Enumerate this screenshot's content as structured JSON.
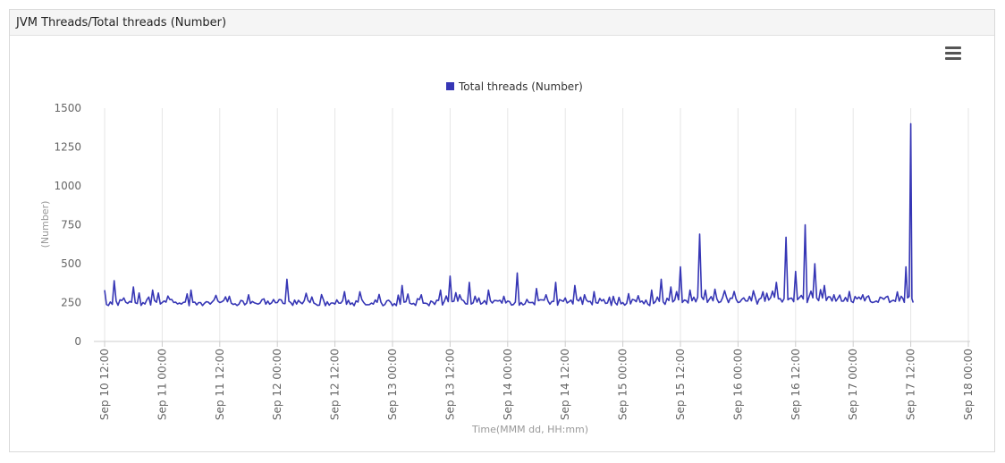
{
  "panel": {
    "title": "JVM Threads/Total threads (Number)"
  },
  "menu": {
    "icon": "hamburger-menu-icon"
  },
  "chart_data": {
    "type": "line",
    "title": "",
    "xlabel": "Time(MMM dd, HH:mm)",
    "ylabel": "(Number)",
    "ylim": [
      0,
      1500
    ],
    "yticks": [
      0,
      250,
      500,
      750,
      1000,
      1250,
      1500
    ],
    "xticks": [
      "Sep 10 12:00",
      "Sep 11 00:00",
      "Sep 11 12:00",
      "Sep 12 00:00",
      "Sep 12 12:00",
      "Sep 13 00:00",
      "Sep 13 12:00",
      "Sep 14 00:00",
      "Sep 14 12:00",
      "Sep 15 00:00",
      "Sep 15 12:00",
      "Sep 16 00:00",
      "Sep 16 12:00",
      "Sep 17 00:00",
      "Sep 17 12:00",
      "Sep 18 00:00"
    ],
    "grid": true,
    "legend_position": "top-center",
    "colors": {
      "series": "#3636b5",
      "grid": "#e6e6e6",
      "axis": "#cccccc"
    },
    "series": [
      {
        "name": "Total threads (Number)",
        "x": [
          "Sep 10 12:00",
          "Sep 10 14:00",
          "Sep 10 16:00",
          "Sep 10 18:00",
          "Sep 10 20:00",
          "Sep 10 22:00",
          "Sep 11 00:00",
          "Sep 11 02:00",
          "Sep 11 04:00",
          "Sep 11 06:00",
          "Sep 11 08:00",
          "Sep 11 10:00",
          "Sep 11 12:00",
          "Sep 11 14:00",
          "Sep 11 16:00",
          "Sep 11 18:00",
          "Sep 11 20:00",
          "Sep 11 22:00",
          "Sep 12 00:00",
          "Sep 12 02:00",
          "Sep 12 04:00",
          "Sep 12 06:00",
          "Sep 12 08:00",
          "Sep 12 10:00",
          "Sep 12 12:00",
          "Sep 12 14:00",
          "Sep 12 16:00",
          "Sep 12 18:00",
          "Sep 12 20:00",
          "Sep 12 22:00",
          "Sep 13 00:00",
          "Sep 13 02:00",
          "Sep 13 04:00",
          "Sep 13 06:00",
          "Sep 13 08:00",
          "Sep 13 10:00",
          "Sep 13 12:00",
          "Sep 13 14:00",
          "Sep 13 16:00",
          "Sep 13 18:00",
          "Sep 13 20:00",
          "Sep 13 22:00",
          "Sep 14 00:00",
          "Sep 14 02:00",
          "Sep 14 04:00",
          "Sep 14 06:00",
          "Sep 14 08:00",
          "Sep 14 10:00",
          "Sep 14 12:00",
          "Sep 14 14:00",
          "Sep 14 16:00",
          "Sep 14 18:00",
          "Sep 14 20:00",
          "Sep 14 22:00",
          "Sep 15 00:00",
          "Sep 15 02:00",
          "Sep 15 04:00",
          "Sep 15 06:00",
          "Sep 15 08:00",
          "Sep 15 10:00",
          "Sep 15 12:00",
          "Sep 15 14:00",
          "Sep 15 16:00",
          "Sep 15 18:00",
          "Sep 15 20:00",
          "Sep 15 22:00",
          "Sep 16 00:00",
          "Sep 16 02:00",
          "Sep 16 04:00",
          "Sep 16 06:00",
          "Sep 16 08:00",
          "Sep 16 10:00",
          "Sep 16 12:00",
          "Sep 16 14:00",
          "Sep 16 16:00",
          "Sep 16 18:00",
          "Sep 16 20:00",
          "Sep 16 22:00",
          "Sep 17 00:00",
          "Sep 17 02:00",
          "Sep 17 04:00",
          "Sep 17 06:00",
          "Sep 17 08:00",
          "Sep 17 10:00",
          "Sep 17 11:00",
          "Sep 17 12:00",
          "Sep 17 12:30"
        ],
        "values": [
          330,
          390,
          280,
          350,
          250,
          330,
          250,
          270,
          240,
          330,
          250,
          240,
          250,
          290,
          240,
          300,
          240,
          260,
          250,
          400,
          240,
          310,
          240,
          230,
          240,
          320,
          230,
          250,
          240,
          230,
          230,
          360,
          240,
          300,
          260,
          330,
          420,
          300,
          380,
          280,
          330,
          260,
          260,
          440,
          270,
          340,
          300,
          380,
          280,
          360,
          300,
          320,
          270,
          290,
          250,
          270,
          260,
          330,
          400,
          350,
          480,
          330,
          690,
          270,
          250,
          250,
          250,
          260,
          240,
          310,
          380,
          670,
          450,
          750,
          500,
          360,
          300,
          260,
          250,
          300,
          250,
          280,
          260,
          290,
          480,
          1400,
          250
        ]
      }
    ]
  }
}
